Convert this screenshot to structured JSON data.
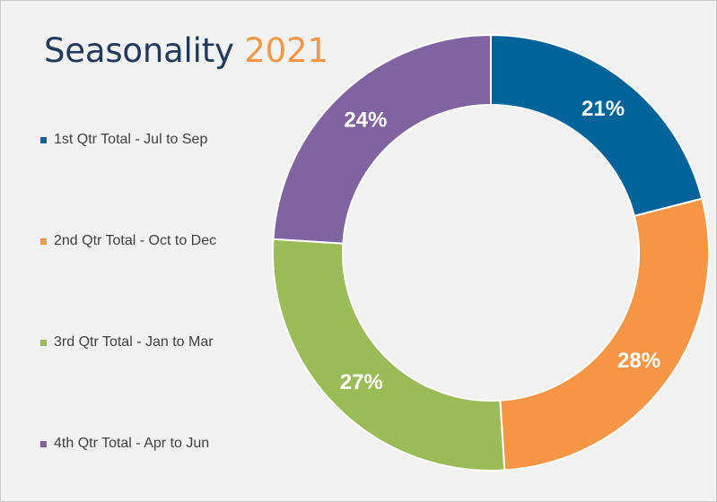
{
  "title": {
    "main": "Seasonality ",
    "year": "2021"
  },
  "colors": {
    "title": "#22395c",
    "year": "#f79646",
    "q1": "#00649a",
    "q2": "#f79646",
    "q3": "#9bbb59",
    "q4": "#8064a2"
  },
  "chart_data": {
    "type": "pie",
    "variant": "donut",
    "title": "Seasonality 2021",
    "legend_position": "left",
    "series": [
      {
        "name": "1st Qtr Total - Jul to Sep",
        "value": 21,
        "label": "21%",
        "color": "#00649a"
      },
      {
        "name": "2nd Qtr Total - Oct to Dec",
        "value": 28,
        "label": "28%",
        "color": "#f79646"
      },
      {
        "name": "3rd Qtr Total - Jan to Mar",
        "value": 27,
        "label": "27%",
        "color": "#9bbb59"
      },
      {
        "name": "4th Qtr Total - Apr to Jun",
        "value": 24,
        "label": "24%",
        "color": "#8064a2"
      }
    ]
  }
}
